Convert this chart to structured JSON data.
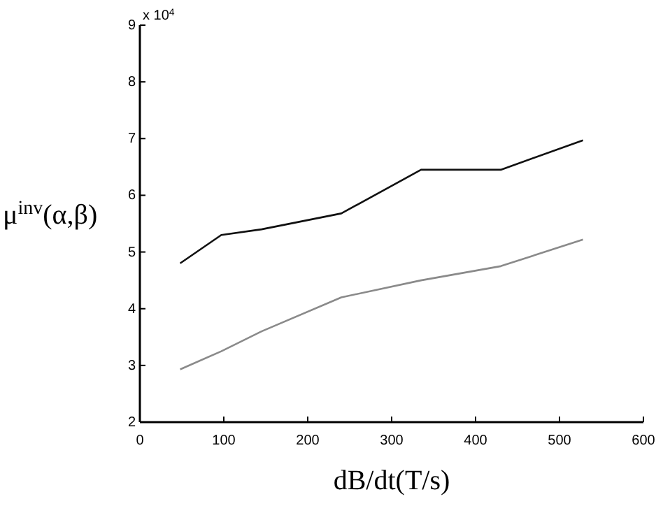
{
  "chart_data": {
    "type": "line",
    "xlabel": "dB/dt(T/s)",
    "ylabel": "μ$^{inv}$(α,β)",
    "annotations": [
      "x 10$^{4}$"
    ],
    "x": [
      48,
      97,
      145,
      240,
      335,
      430,
      528
    ],
    "series": [
      {
        "color": "#111111",
        "values": [
          4.8,
          5.3,
          5.4,
          5.68,
          6.45,
          6.45,
          6.97
        ]
      },
      {
        "color": "#8a8a8a",
        "values": [
          2.93,
          3.25,
          3.6,
          4.2,
          4.5,
          4.75,
          5.22
        ]
      }
    ],
    "xlim": [
      0,
      600
    ],
    "xticks": [
      0,
      100,
      200,
      300,
      400,
      500,
      600
    ],
    "ylim": [
      2,
      9
    ],
    "yticks": [
      2,
      3,
      4,
      5,
      6,
      7,
      8,
      9
    ],
    "grid": false,
    "marker": "none",
    "line_style": "solid"
  }
}
